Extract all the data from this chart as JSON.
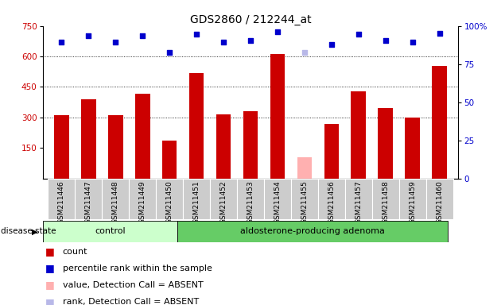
{
  "title": "GDS2860 / 212244_at",
  "samples": [
    "GSM211446",
    "GSM211447",
    "GSM211448",
    "GSM211449",
    "GSM211450",
    "GSM211451",
    "GSM211452",
    "GSM211453",
    "GSM211454",
    "GSM211455",
    "GSM211456",
    "GSM211457",
    "GSM211458",
    "GSM211459",
    "GSM211460"
  ],
  "counts": [
    310,
    390,
    310,
    415,
    185,
    520,
    315,
    330,
    610,
    105,
    270,
    430,
    345,
    300,
    555
  ],
  "percentile_ranks": [
    670,
    700,
    670,
    700,
    620,
    710,
    670,
    680,
    720,
    620,
    660,
    710,
    680,
    670,
    715
  ],
  "absent_value_idx": [
    9
  ],
  "absent_rank_idx": [
    9
  ],
  "control_count": 5,
  "adenoma_count": 10,
  "ylim_left": [
    0,
    750
  ],
  "yticks_left": [
    150,
    300,
    450,
    600,
    750
  ],
  "yticks_right": [
    0,
    25,
    50,
    75,
    100
  ],
  "bar_color": "#cc0000",
  "dot_color": "#0000cc",
  "absent_bar_color": "#ffb0b0",
  "absent_dot_color": "#b8b8e8",
  "control_bg": "#ccffcc",
  "adenoma_bg": "#66cc66",
  "xticklabel_bg": "#cccccc",
  "title_fontsize": 10,
  "tick_fontsize": 7.5,
  "legend_fontsize": 8
}
